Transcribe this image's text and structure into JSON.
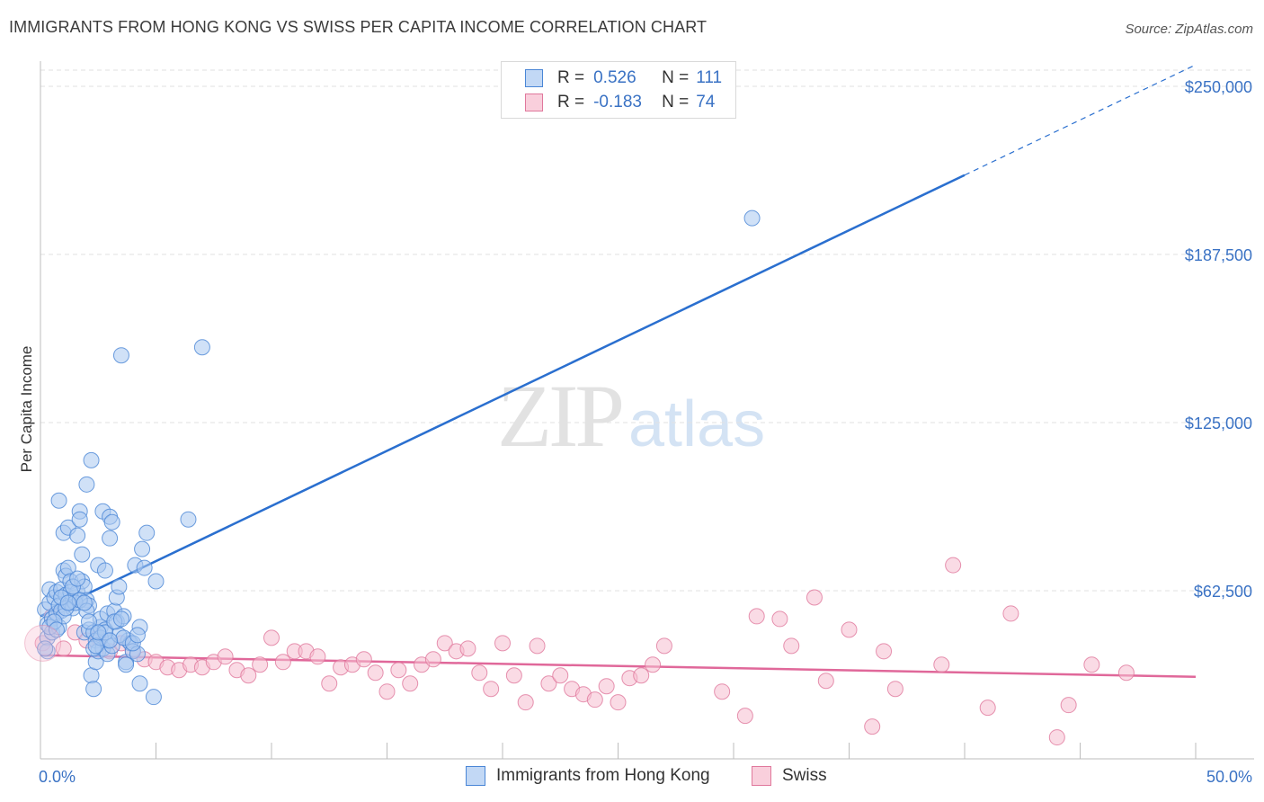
{
  "title": "IMMIGRANTS FROM HONG KONG VS SWISS PER CAPITA INCOME CORRELATION CHART",
  "source": "Source: ZipAtlas.com",
  "watermark": {
    "zip": "ZIP",
    "atlas": "atlas"
  },
  "legend": {
    "rows": [
      {
        "r_label": "R =",
        "r_value": "0.526",
        "n_label": "N =",
        "n_value": "111"
      },
      {
        "r_label": "R =",
        "r_value": "-0.183",
        "n_label": "N =",
        "n_value": "74"
      }
    ]
  },
  "colors": {
    "blue_fill": "#a9c8f0",
    "blue_stroke": "#4a86d6",
    "blue_line": "#2a6fcf",
    "pink_fill": "#f6bed0",
    "pink_stroke": "#e0789c",
    "pink_line": "#e0689a",
    "tick_text": "#3a72c4",
    "grid": "#e2e2e2"
  },
  "chart_data": {
    "type": "scatter",
    "title": "IMMIGRANTS FROM HONG KONG VS SWISS PER CAPITA INCOME CORRELATION CHART",
    "xlabel": "",
    "ylabel": "Per Capita Income",
    "xlim": [
      0,
      50
    ],
    "ylim": [
      0,
      262500
    ],
    "x_tick_labels": [
      "0.0%",
      "50.0%"
    ],
    "y_ticks": [
      62500,
      125000,
      187500,
      250000
    ],
    "y_tick_labels": [
      "$62,500",
      "$125,000",
      "$187,500",
      "$250,000"
    ],
    "grid": true,
    "legend_position": "top-center",
    "series": [
      {
        "name": "Immigrants from Hong Kong",
        "color": "#4a86d6",
        "points": [
          [
            0.2,
            55500
          ],
          [
            0.3,
            50000
          ],
          [
            0.3,
            45000
          ],
          [
            0.4,
            58000
          ],
          [
            0.4,
            63000
          ],
          [
            0.5,
            52000
          ],
          [
            0.6,
            60000
          ],
          [
            0.7,
            54000
          ],
          [
            0.7,
            62000
          ],
          [
            0.8,
            96000
          ],
          [
            0.8,
            57000
          ],
          [
            0.9,
            63000
          ],
          [
            0.9,
            55000
          ],
          [
            1.0,
            70000
          ],
          [
            1.0,
            84000
          ],
          [
            1.1,
            68000
          ],
          [
            1.1,
            61000
          ],
          [
            1.2,
            86000
          ],
          [
            1.2,
            71000
          ],
          [
            1.3,
            58000
          ],
          [
            1.3,
            66000
          ],
          [
            1.4,
            59000
          ],
          [
            1.4,
            56000
          ],
          [
            1.5,
            60000
          ],
          [
            1.6,
            83000
          ],
          [
            1.6,
            62000
          ],
          [
            1.7,
            92000
          ],
          [
            1.7,
            89000
          ],
          [
            1.8,
            76000
          ],
          [
            1.8,
            66000
          ],
          [
            1.9,
            64000
          ],
          [
            1.9,
            47000
          ],
          [
            2.0,
            102000
          ],
          [
            2.0,
            59000
          ],
          [
            2.1,
            48000
          ],
          [
            2.1,
            57000
          ],
          [
            2.2,
            111000
          ],
          [
            2.2,
            31000
          ],
          [
            2.3,
            47000
          ],
          [
            2.3,
            26000
          ],
          [
            2.4,
            36000
          ],
          [
            2.4,
            44000
          ],
          [
            2.5,
            72000
          ],
          [
            2.5,
            40000
          ],
          [
            2.6,
            49000
          ],
          [
            2.6,
            52000
          ],
          [
            2.7,
            92000
          ],
          [
            2.7,
            41000
          ],
          [
            2.8,
            70000
          ],
          [
            2.8,
            48000
          ],
          [
            2.9,
            54000
          ],
          [
            2.9,
            44000
          ],
          [
            3.0,
            90000
          ],
          [
            3.0,
            82000
          ],
          [
            3.1,
            88000
          ],
          [
            3.2,
            55000
          ],
          [
            3.3,
            60000
          ],
          [
            3.3,
            51000
          ],
          [
            3.4,
            64000
          ],
          [
            3.5,
            150000
          ],
          [
            3.6,
            53000
          ],
          [
            3.7,
            36000
          ],
          [
            3.8,
            44000
          ],
          [
            3.9,
            43000
          ],
          [
            4.0,
            40000
          ],
          [
            4.1,
            72000
          ],
          [
            4.2,
            39000
          ],
          [
            4.3,
            49000
          ],
          [
            4.3,
            28000
          ],
          [
            4.4,
            78000
          ],
          [
            4.5,
            71000
          ],
          [
            4.6,
            84000
          ],
          [
            4.9,
            23000
          ],
          [
            5.0,
            66000
          ],
          [
            6.4,
            89000
          ],
          [
            7.0,
            153000
          ],
          [
            0.3,
            40000
          ],
          [
            0.5,
            47000
          ],
          [
            0.8,
            49000
          ],
          [
            1.0,
            53000
          ],
          [
            1.3,
            62000
          ],
          [
            1.5,
            58000
          ],
          [
            1.7,
            59000
          ],
          [
            2.0,
            55000
          ],
          [
            2.3,
            41000
          ],
          [
            2.6,
            45000
          ],
          [
            2.9,
            39000
          ],
          [
            3.1,
            42000
          ],
          [
            3.4,
            46000
          ],
          [
            3.7,
            35000
          ],
          [
            30.8,
            201000
          ],
          [
            0.4,
            49000
          ],
          [
            0.6,
            51000
          ],
          [
            1.1,
            56000
          ],
          [
            1.4,
            64000
          ],
          [
            1.9,
            58000
          ],
          [
            2.4,
            42000
          ],
          [
            2.8,
            47000
          ],
          [
            3.2,
            51000
          ],
          [
            3.6,
            45000
          ],
          [
            4.0,
            43000
          ],
          [
            0.2,
            41000
          ],
          [
            0.9,
            60000
          ],
          [
            1.2,
            58000
          ],
          [
            1.6,
            67000
          ],
          [
            2.1,
            51000
          ],
          [
            2.5,
            47000
          ],
          [
            3.0,
            44000
          ],
          [
            3.5,
            52000
          ],
          [
            4.2,
            46000
          ],
          [
            0.7,
            48000
          ]
        ],
        "trend": {
          "x": [
            0,
            40
          ],
          "y": [
            53000,
            217000
          ],
          "dashed_extension": {
            "x": [
              40,
              50
            ],
            "y": [
              217000,
              258000
            ]
          }
        }
      },
      {
        "name": "Swiss",
        "color": "#e0789c",
        "points": [
          [
            0.1,
            43000
          ],
          [
            0.5,
            53000
          ],
          [
            1.0,
            41000
          ],
          [
            1.5,
            47000
          ],
          [
            2.0,
            44000
          ],
          [
            2.5,
            45000
          ],
          [
            3.0,
            40000
          ],
          [
            3.5,
            43000
          ],
          [
            4.0,
            40000
          ],
          [
            4.5,
            37000
          ],
          [
            5.0,
            36000
          ],
          [
            5.5,
            34000
          ],
          [
            6.0,
            33000
          ],
          [
            6.5,
            35000
          ],
          [
            7.0,
            34000
          ],
          [
            7.5,
            36000
          ],
          [
            8.0,
            38000
          ],
          [
            8.5,
            33000
          ],
          [
            9.0,
            31000
          ],
          [
            9.5,
            35000
          ],
          [
            10.0,
            45000
          ],
          [
            10.5,
            36000
          ],
          [
            11.0,
            40000
          ],
          [
            11.5,
            40000
          ],
          [
            12.0,
            38000
          ],
          [
            12.5,
            28000
          ],
          [
            13.0,
            34000
          ],
          [
            13.5,
            35000
          ],
          [
            14.0,
            37000
          ],
          [
            14.5,
            32000
          ],
          [
            15.0,
            25000
          ],
          [
            15.5,
            33000
          ],
          [
            16.0,
            28000
          ],
          [
            16.5,
            35000
          ],
          [
            17.0,
            37000
          ],
          [
            17.5,
            43000
          ],
          [
            18.0,
            40000
          ],
          [
            18.5,
            41000
          ],
          [
            19.0,
            32000
          ],
          [
            19.5,
            26000
          ],
          [
            20.0,
            43000
          ],
          [
            20.5,
            31000
          ],
          [
            21.0,
            21000
          ],
          [
            21.5,
            42000
          ],
          [
            22.0,
            28000
          ],
          [
            22.5,
            31000
          ],
          [
            23.0,
            26000
          ],
          [
            23.5,
            24000
          ],
          [
            24.0,
            22000
          ],
          [
            24.5,
            27000
          ],
          [
            25.0,
            21000
          ],
          [
            25.5,
            30000
          ],
          [
            26.0,
            31000
          ],
          [
            26.5,
            35000
          ],
          [
            27.0,
            42000
          ],
          [
            29.5,
            25000
          ],
          [
            30.5,
            16000
          ],
          [
            31.0,
            53000
          ],
          [
            32.0,
            52000
          ],
          [
            32.5,
            42000
          ],
          [
            33.5,
            60000
          ],
          [
            34.0,
            29000
          ],
          [
            35.0,
            48000
          ],
          [
            36.0,
            12000
          ],
          [
            36.5,
            40000
          ],
          [
            37.0,
            26000
          ],
          [
            39.0,
            35000
          ],
          [
            39.5,
            72000
          ],
          [
            41.0,
            19000
          ],
          [
            42.0,
            54000
          ],
          [
            44.0,
            8000
          ],
          [
            44.5,
            20000
          ],
          [
            45.5,
            35000
          ],
          [
            47.0,
            32000
          ]
        ],
        "trend": {
          "x": [
            0,
            50
          ],
          "y": [
            38500,
            30500
          ]
        }
      }
    ]
  },
  "axis": {
    "ylabel": "Per Capita Income",
    "x_min_label": "0.0%",
    "x_max_label": "50.0%",
    "y_labels": [
      "$250,000",
      "$187,500",
      "$125,000",
      "$62,500"
    ]
  },
  "bottom_legend": [
    "Immigrants from Hong Kong",
    "Swiss"
  ]
}
